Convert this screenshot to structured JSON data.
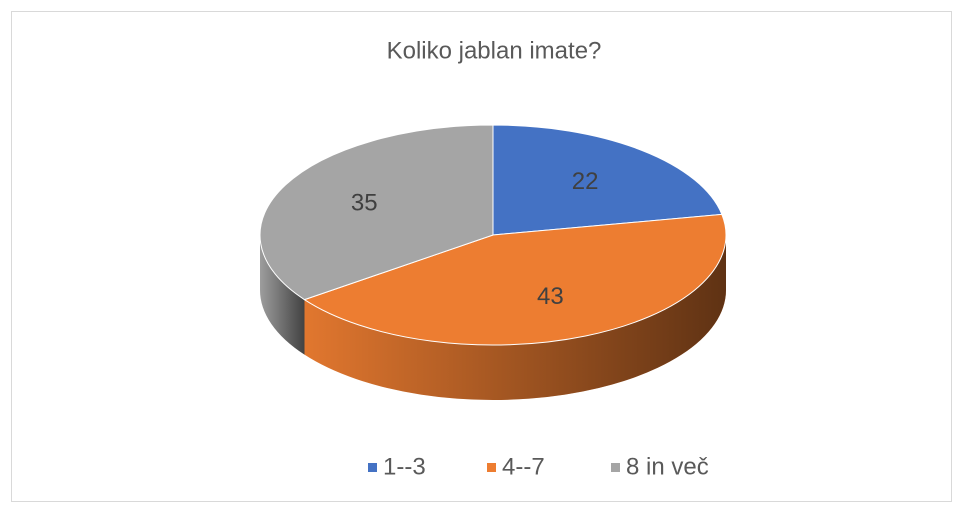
{
  "chart_data": {
    "type": "pie",
    "title": "Koliko jablan imate?",
    "categories": [
      "1--3",
      "4--7",
      "8 in več"
    ],
    "values": [
      22,
      43,
      35
    ],
    "colors": [
      "#4472c4",
      "#ed7d31",
      "#a5a5a5"
    ],
    "legend": "bottom"
  }
}
